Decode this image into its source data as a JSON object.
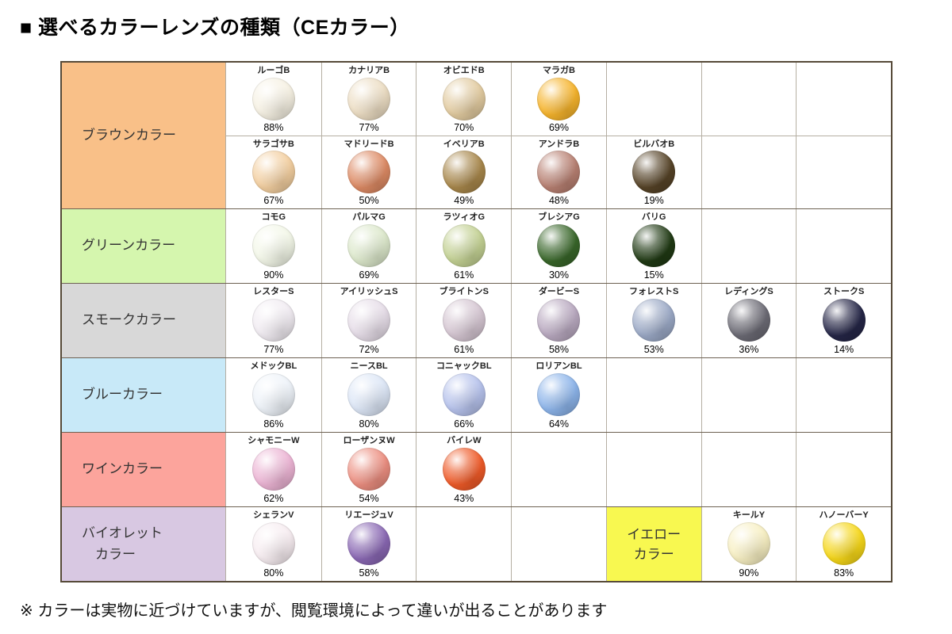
{
  "page": {
    "title": "■ 選べるカラーレンズの種類（CEカラー）",
    "footnote": "※ カラーは実物に近づけていますが、閲覧環境によって違いが出ることがあります"
  },
  "chart_data": {
    "type": "table",
    "title": "選べるカラーレンズの種類（CEカラー）",
    "columns": 7,
    "groups": [
      {
        "label": "ブラウンカラー",
        "label_bg": "#f9c088",
        "sub_rows": [
          {
            "cells": [
              {
                "col": 0,
                "name": "ルーゴB",
                "pct": "88%",
                "color": "#f6f1e3"
              },
              {
                "col": 1,
                "name": "カナリアB",
                "pct": "77%",
                "color": "#ecddc3"
              },
              {
                "col": 2,
                "name": "オビエドB",
                "pct": "70%",
                "color": "#e2cba0"
              },
              {
                "col": 3,
                "name": "マラガB",
                "pct": "69%",
                "color": "#f6b42c"
              }
            ]
          },
          {
            "cells": [
              {
                "col": 0,
                "name": "サラゴサB",
                "pct": "67%",
                "color": "#f3cfa0"
              },
              {
                "col": 1,
                "name": "マドリードB",
                "pct": "50%",
                "color": "#dd8a64"
              },
              {
                "col": 2,
                "name": "イベリアB",
                "pct": "49%",
                "color": "#a8874b"
              },
              {
                "col": 3,
                "name": "アンドラB",
                "pct": "48%",
                "color": "#b88072"
              },
              {
                "col": 4,
                "name": "ビルバオB",
                "pct": "19%",
                "color": "#564327"
              }
            ]
          }
        ]
      },
      {
        "label": "グリーンカラー",
        "label_bg": "#d5f6ae",
        "sub_rows": [
          {
            "cells": [
              {
                "col": 0,
                "name": "コモG",
                "pct": "90%",
                "color": "#f3f7e8"
              },
              {
                "col": 1,
                "name": "パルマG",
                "pct": "69%",
                "color": "#dce8cb"
              },
              {
                "col": 2,
                "name": "ラツィオG",
                "pct": "61%",
                "color": "#c3d193"
              },
              {
                "col": 3,
                "name": "ブレシアG",
                "pct": "30%",
                "color": "#39672a"
              },
              {
                "col": 4,
                "name": "バリG",
                "pct": "15%",
                "color": "#203a14"
              }
            ]
          }
        ]
      },
      {
        "label": "スモークカラー",
        "label_bg": "#d8d8d8",
        "sub_rows": [
          {
            "cells": [
              {
                "col": 0,
                "name": "レスターS",
                "pct": "77%",
                "color": "#f1ecf2"
              },
              {
                "col": 1,
                "name": "アイリッシュS",
                "pct": "72%",
                "color": "#e6dde8"
              },
              {
                "col": 2,
                "name": "ブライトンS",
                "pct": "61%",
                "color": "#d5c6d2"
              },
              {
                "col": 3,
                "name": "ダービーS",
                "pct": "58%",
                "color": "#b9a9c0"
              },
              {
                "col": 4,
                "name": "フォレストS",
                "pct": "53%",
                "color": "#9ba9c6"
              },
              {
                "col": 5,
                "name": "レディングS",
                "pct": "36%",
                "color": "#6c6b75"
              },
              {
                "col": 6,
                "name": "ストークS",
                "pct": "14%",
                "color": "#252647"
              }
            ]
          }
        ]
      },
      {
        "label": "ブルーカラー",
        "label_bg": "#c8e9f8",
        "sub_rows": [
          {
            "cells": [
              {
                "col": 0,
                "name": "メドックBL",
                "pct": "86%",
                "color": "#eef3f9"
              },
              {
                "col": 1,
                "name": "ニースBL",
                "pct": "80%",
                "color": "#dce6f6"
              },
              {
                "col": 2,
                "name": "コニャックBL",
                "pct": "66%",
                "color": "#b6c2ec"
              },
              {
                "col": 3,
                "name": "ロリアンBL",
                "pct": "64%",
                "color": "#8cb4ea"
              }
            ]
          }
        ]
      },
      {
        "label": "ワインカラー",
        "label_bg": "#fca49c",
        "sub_rows": [
          {
            "cells": [
              {
                "col": 0,
                "name": "シャモニーW",
                "pct": "62%",
                "color": "#ecb4d4"
              },
              {
                "col": 1,
                "name": "ローザンヌW",
                "pct": "54%",
                "color": "#ec8e80"
              },
              {
                "col": 2,
                "name": "バイレW",
                "pct": "43%",
                "color": "#ef5a28"
              }
            ]
          }
        ]
      },
      {
        "label": "バイオレット\n　カラー",
        "label_bg": "#d8c8e2",
        "sub_rows": [
          {
            "cells": [
              {
                "col": 0,
                "name": "シェランV",
                "pct": "80%",
                "color": "#f7edf1"
              },
              {
                "col": 1,
                "name": "リエージュV",
                "pct": "58%",
                "color": "#8a68b4"
              },
              {
                "col": 4,
                "type": "label",
                "text": "イエロー\nカラー",
                "bg": "#f8f850"
              },
              {
                "col": 5,
                "name": "キールY",
                "pct": "90%",
                "color": "#f7efc2"
              },
              {
                "col": 6,
                "name": "ハノーバーY",
                "pct": "83%",
                "color": "#f6d718"
              }
            ]
          }
        ]
      }
    ]
  }
}
